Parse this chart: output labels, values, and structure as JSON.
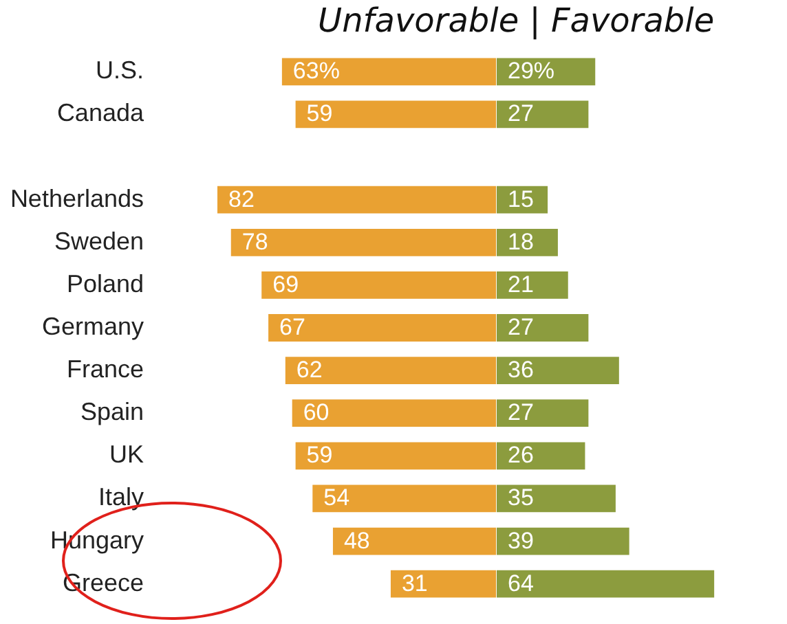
{
  "chart_data": [
    {
      "type": "bar",
      "orientation": "horizontal",
      "title": "Unfavorable | Favorable",
      "xlim": [
        82,
        0
      ],
      "categories": [
        "U.S.",
        "Canada",
        null,
        "Netherlands",
        "Sweden",
        "Poland",
        "Germany",
        "France",
        "Spain",
        "UK",
        "Italy",
        "Hungary",
        "Greece"
      ],
      "series": [
        {
          "color": "#e9a132",
          "values": [
            63,
            59,
            null,
            82,
            78,
            69,
            67,
            62,
            60,
            59,
            54,
            48,
            31
          ],
          "value_labels": [
            "63%",
            "59",
            null,
            "82",
            "78",
            "69",
            "67",
            "62",
            "60",
            "59",
            "54",
            "48",
            "31"
          ]
        }
      ]
    },
    {
      "type": "bar",
      "orientation": "horizontal",
      "xlim": [
        0,
        64
      ],
      "tick_labels": false,
      "categories": [
        "U.S.",
        "Canada",
        null,
        "Netherlands",
        "Sweden",
        "Poland",
        "Germany",
        "France",
        "Spain",
        "UK",
        "Italy",
        "Hungary",
        "Greece"
      ],
      "series": [
        {
          "color": "#8c9c3e",
          "values": [
            29,
            27,
            null,
            15,
            18,
            21,
            27,
            36,
            27,
            26,
            35,
            39,
            64
          ],
          "value_labels": [
            "29%",
            "27",
            null,
            "15",
            "18",
            "21",
            "27",
            "36",
            "27",
            "26",
            "35",
            "39",
            "64"
          ]
        }
      ]
    }
  ]
}
